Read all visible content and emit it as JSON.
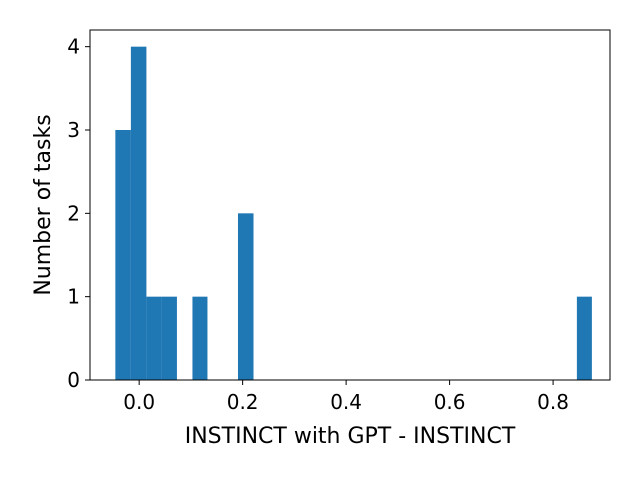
{
  "chart_data": {
    "type": "bar",
    "subtype": "histogram",
    "title": "",
    "xlabel": "INSTINCT with GPT - INSTINCT",
    "ylabel": "Number of tasks",
    "xlim": [
      -0.095,
      0.91
    ],
    "ylim": [
      0,
      4.2
    ],
    "grid": false,
    "bar_color": "#1f77b4",
    "x_ticks": [
      {
        "value": 0.0,
        "label": "0.0"
      },
      {
        "value": 0.2,
        "label": "0.2"
      },
      {
        "value": 0.4,
        "label": "0.4"
      },
      {
        "value": 0.6,
        "label": "0.6"
      },
      {
        "value": 0.8,
        "label": "0.8"
      }
    ],
    "y_ticks": [
      {
        "value": 0,
        "label": "0"
      },
      {
        "value": 1,
        "label": "1"
      },
      {
        "value": 2,
        "label": "2"
      },
      {
        "value": 3,
        "label": "3"
      },
      {
        "value": 4,
        "label": "4"
      }
    ],
    "bins": [
      {
        "x0": -0.046,
        "x1": -0.016,
        "count": 3
      },
      {
        "x0": -0.016,
        "x1": 0.014,
        "count": 4
      },
      {
        "x0": 0.014,
        "x1": 0.043,
        "count": 1
      },
      {
        "x0": 0.043,
        "x1": 0.073,
        "count": 1
      },
      {
        "x0": 0.103,
        "x1": 0.132,
        "count": 1
      },
      {
        "x0": 0.191,
        "x1": 0.221,
        "count": 2
      },
      {
        "x0": 0.846,
        "x1": 0.875,
        "count": 1
      }
    ]
  }
}
